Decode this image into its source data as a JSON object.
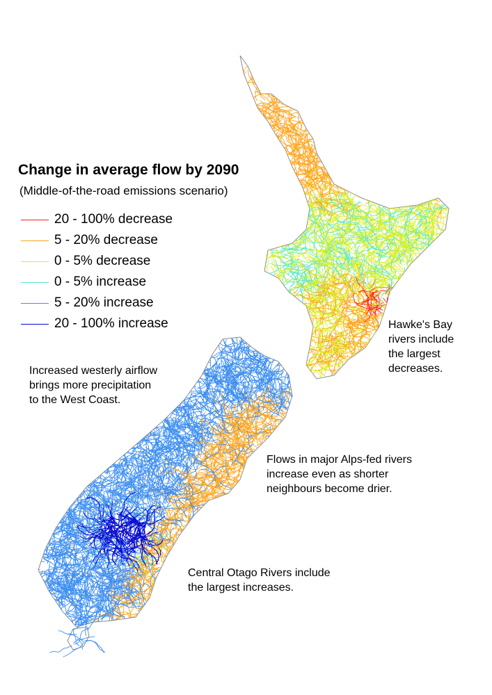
{
  "title": "Change in average flow by 2090",
  "subtitle": "(Middle-of-the-road emissions scenario)",
  "legend": [
    {
      "label": "20 - 100% decrease",
      "color": "#ff1a1a"
    },
    {
      "label": "5 - 20% decrease",
      "color": "#ffa41c"
    },
    {
      "label": "0 - 5% decrease",
      "color": "#d9f020"
    },
    {
      "label": "0 - 5% increase",
      "color": "#59e8c8"
    },
    {
      "label": "5 - 20% increase",
      "color": "#3d8ef0"
    },
    {
      "label": "20 - 100% increase",
      "color": "#0a0ad0"
    }
  ],
  "annotations": {
    "hawkes_bay": "Hawke's Bay\nrivers include\nthe largest\ndecreases.",
    "west_coast": "Increased westerly airflow\nbrings more precipitation\nto the West Coast.",
    "alps": "Flows in major Alps-fed rivers\nincrease even as shorter\nneighbours become drier.",
    "otago": "Central Otago Rivers include\nthe largest increases."
  },
  "map": {
    "coast_color": "#8a8a8a",
    "regions": [
      {
        "name": "north-island",
        "dominant_class": "5 - 20% decrease"
      },
      {
        "name": "hawkes-bay",
        "dominant_class": "20 - 100% decrease"
      },
      {
        "name": "south-island-west",
        "dominant_class": "5 - 20% increase"
      },
      {
        "name": "central-otago",
        "dominant_class": "20 - 100% increase"
      },
      {
        "name": "canterbury-east",
        "dominant_class": "5 - 20% decrease"
      }
    ]
  }
}
